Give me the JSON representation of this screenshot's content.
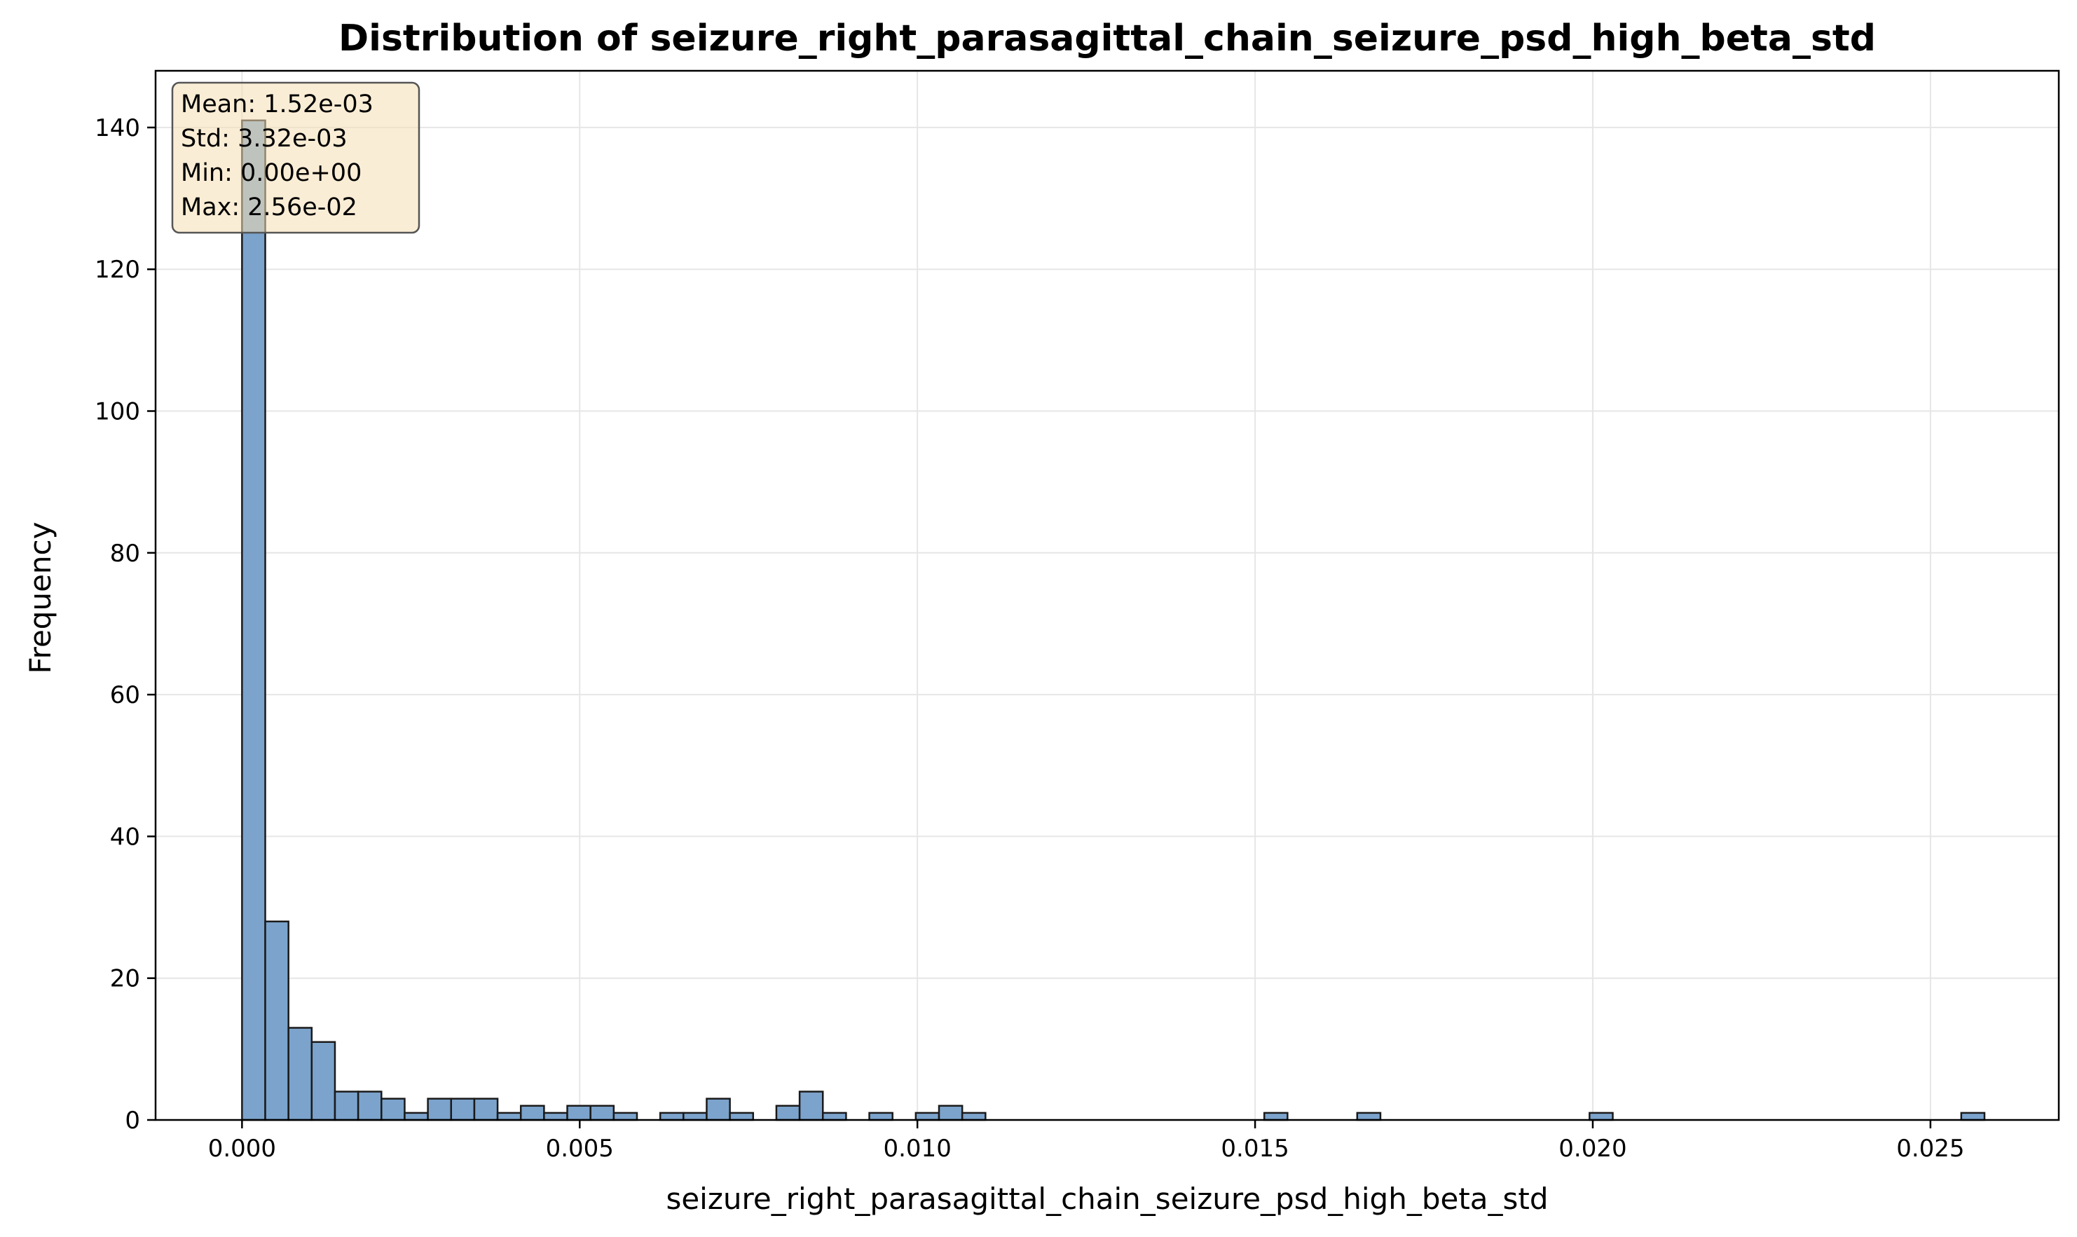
{
  "chart_data": {
    "type": "bar",
    "subtype": "histogram",
    "title": "Distribution of seizure_right_parasagittal_chain_seizure_psd_high_beta_std",
    "xlabel": "seizure_right_parasagittal_chain_seizure_psd_high_beta_std",
    "ylabel": "Frequency",
    "xlim": [
      -0.00128,
      0.0269
    ],
    "ylim": [
      0,
      148
    ],
    "xticks": [
      0.0,
      0.005,
      0.01,
      0.015,
      0.02,
      0.025
    ],
    "xtick_labels": [
      "0.000",
      "0.005",
      "0.010",
      "0.015",
      "0.020",
      "0.025"
    ],
    "yticks": [
      0,
      20,
      40,
      60,
      80,
      100,
      120,
      140
    ],
    "ytick_labels": [
      "0",
      "20",
      "40",
      "60",
      "80",
      "100",
      "120",
      "140"
    ],
    "grid": true,
    "bin_start": 0.0,
    "bin_width": 0.000344,
    "counts": [
      141,
      28,
      13,
      11,
      4,
      4,
      3,
      1,
      3,
      3,
      3,
      1,
      2,
      1,
      2,
      2,
      1,
      0,
      1,
      1,
      3,
      1,
      0,
      2,
      4,
      1,
      0,
      1,
      0,
      1,
      2,
      1,
      0,
      0,
      0,
      0,
      0,
      0,
      0,
      0,
      0,
      0,
      0,
      0,
      1,
      0,
      0,
      0,
      1,
      0,
      0,
      0,
      0,
      0,
      0,
      0,
      0,
      0,
      1,
      0,
      0,
      0,
      0,
      0,
      0,
      0,
      0,
      0,
      0,
      0,
      0,
      0,
      0,
      0,
      1
    ],
    "stats_box": {
      "position": "top-left",
      "lines": [
        "Mean: 1.52e-03",
        "Std: 3.32e-03",
        "Min: 0.00e+00",
        "Max: 2.56e-02"
      ]
    },
    "colors": {
      "bar_fill": "#7ba3cc",
      "bar_edge": "#1a1a1a",
      "stats_box_fill": "#f5deb3",
      "grid": "#e6e6e6"
    }
  }
}
